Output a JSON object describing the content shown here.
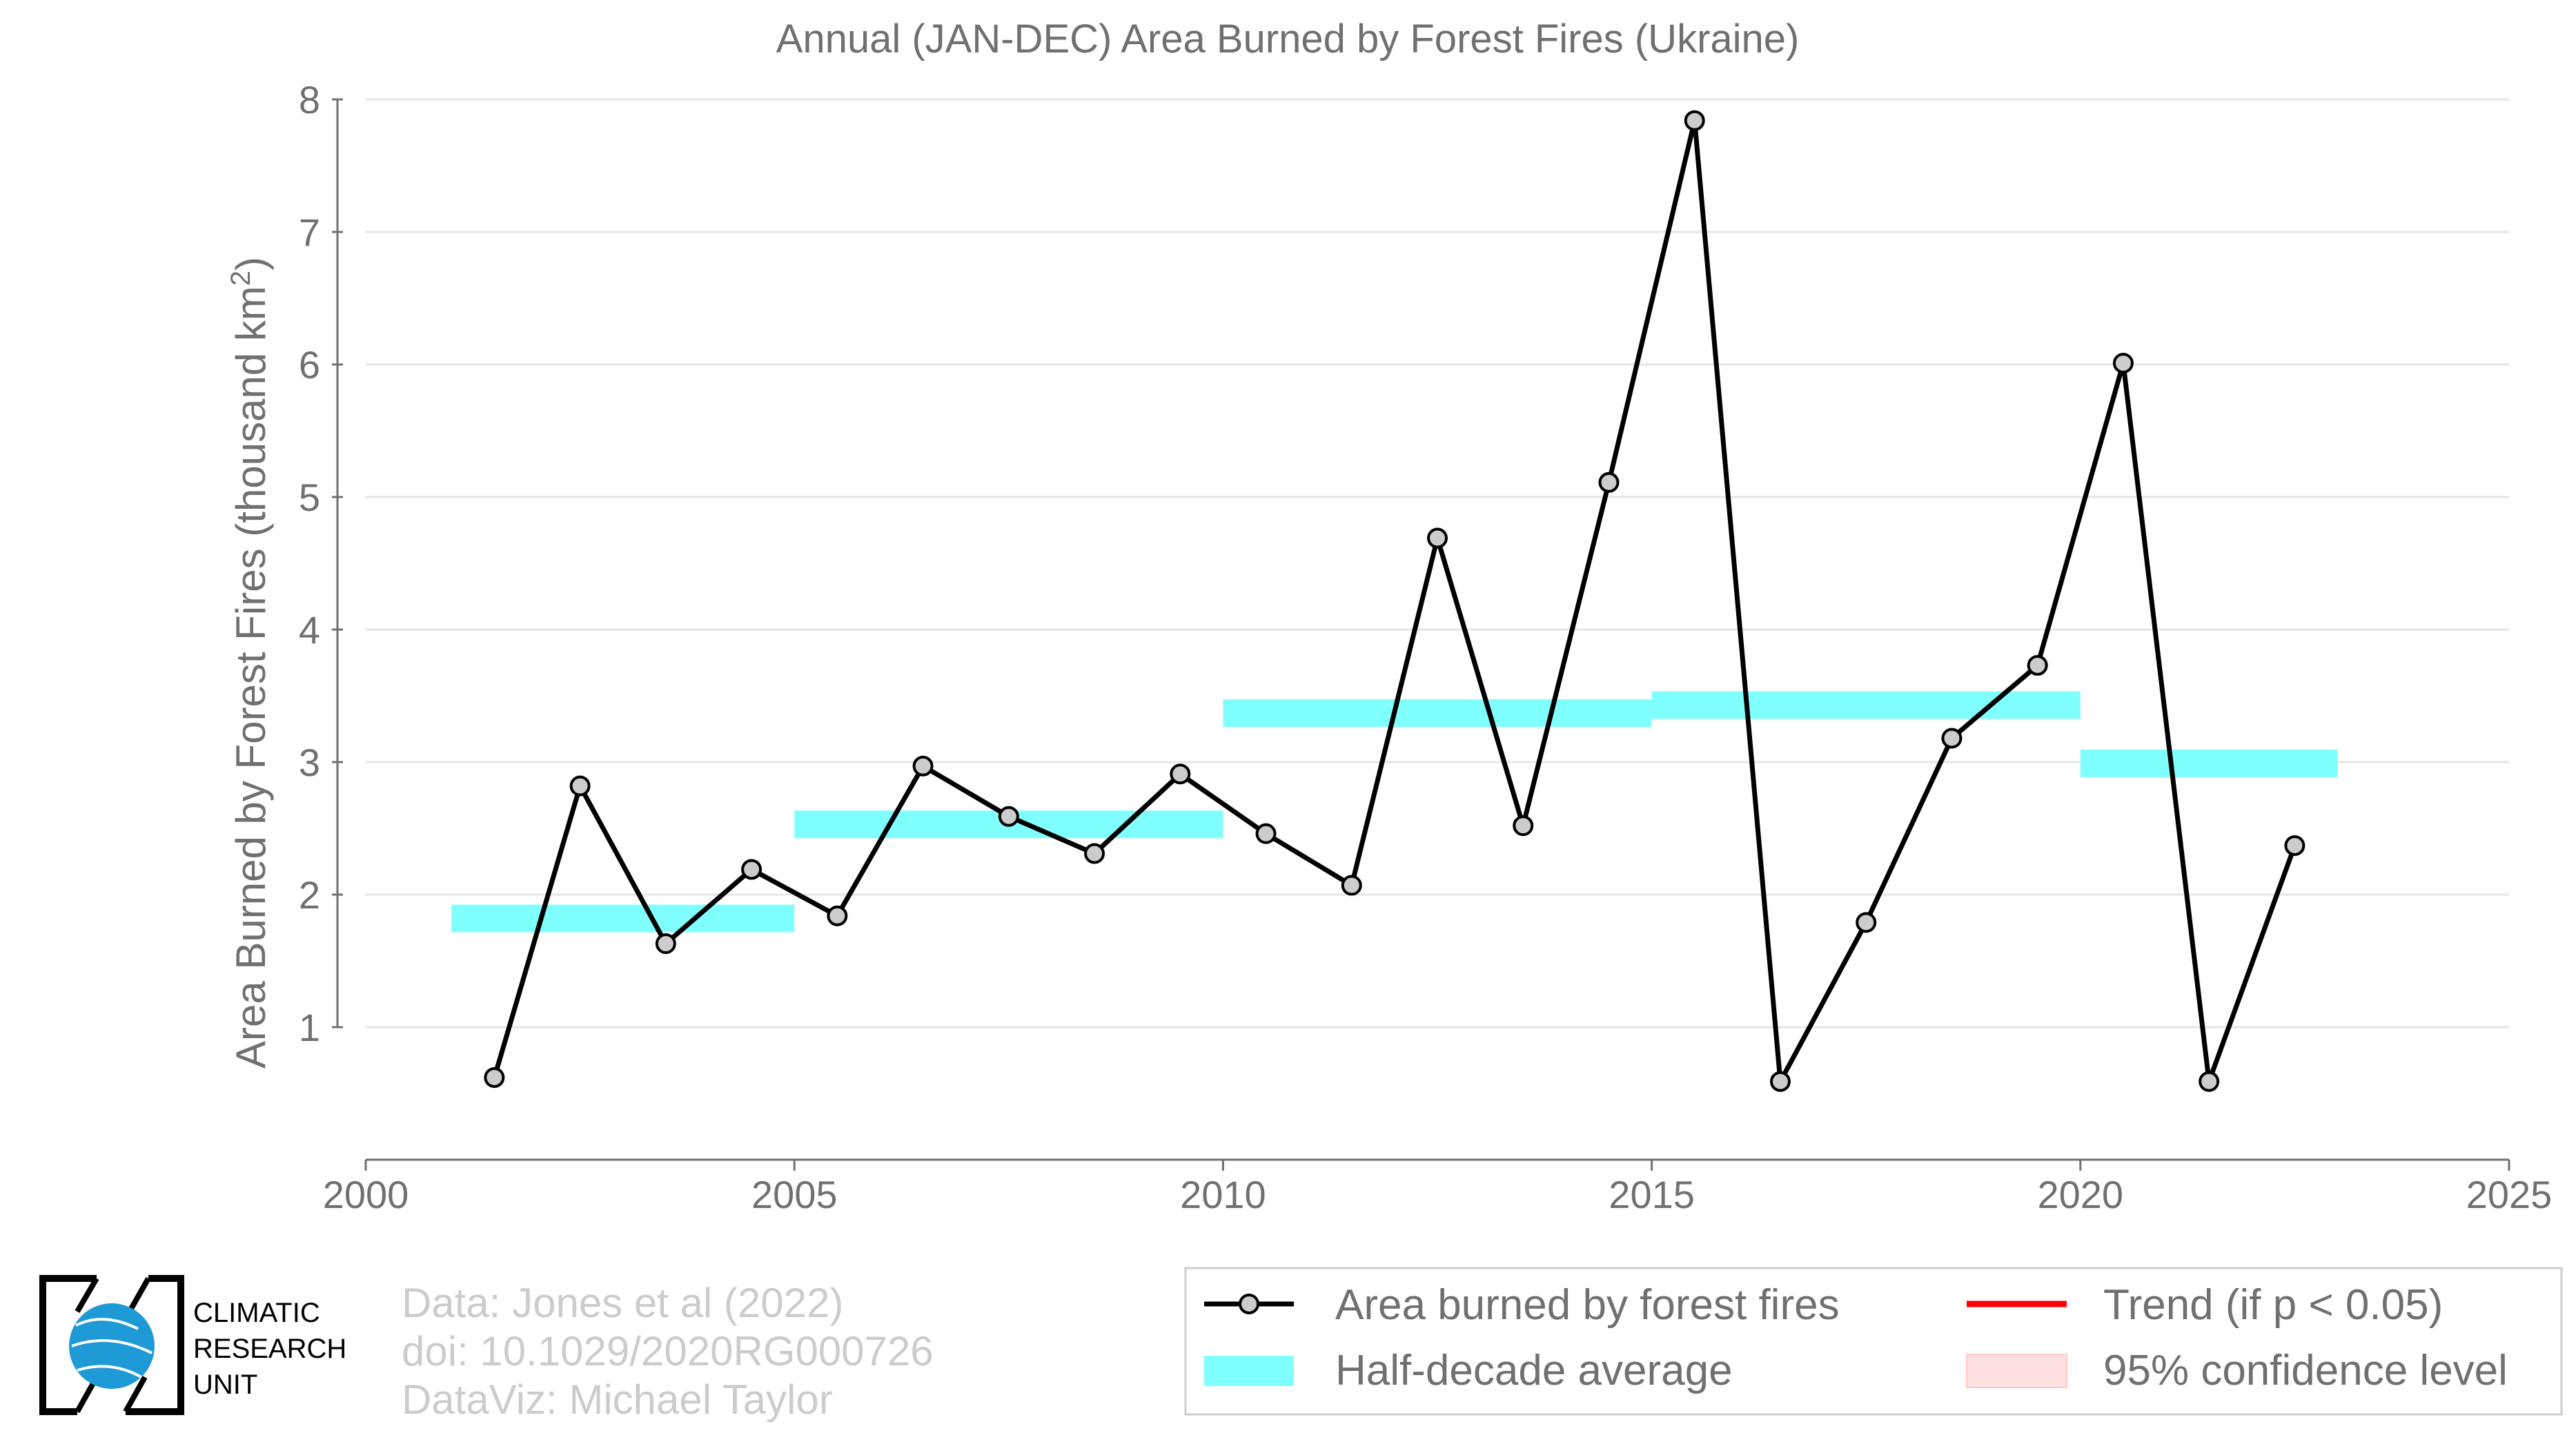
{
  "chart_data": {
    "type": "line",
    "title": "Annual (JAN-DEC) Area Burned by Forest Fires (Ukraine)",
    "ylabel_main": "Area Burned by Forest Fires (thousand km",
    "ylabel_sup": "2",
    "ylabel_close": ")",
    "xlim": [
      2000,
      2025
    ],
    "ylim": [
      0,
      8
    ],
    "xticks": [
      2000,
      2005,
      2010,
      2015,
      2020,
      2025
    ],
    "yticks": [
      1,
      2,
      3,
      4,
      5,
      6,
      7,
      8
    ],
    "grid": "horizontal",
    "series": [
      {
        "name": "Area burned by forest fires",
        "color": "#000000",
        "marker_color": "#cccccc",
        "x": [
          2001.5,
          2002.5,
          2003.5,
          2004.5,
          2005.5,
          2006.5,
          2007.5,
          2008.5,
          2009.5,
          2010.5,
          2011.5,
          2012.5,
          2013.5,
          2014.5,
          2015.5,
          2016.5,
          2017.5,
          2018.5,
          2019.5,
          2020.5,
          2021.5,
          2022.5
        ],
        "values": [
          0.62,
          2.82,
          1.63,
          2.19,
          1.84,
          2.97,
          2.59,
          2.31,
          2.91,
          2.46,
          2.07,
          4.69,
          2.52,
          5.11,
          7.84,
          0.59,
          1.79,
          3.18,
          3.73,
          6.01,
          0.59,
          2.37
        ]
      }
    ],
    "half_decade_average": {
      "name": "Half-decade average",
      "color": "#80ffff",
      "segments": [
        {
          "x0": 2001,
          "x1": 2005,
          "value": 1.82
        },
        {
          "x0": 2005,
          "x1": 2010,
          "value": 2.53
        },
        {
          "x0": 2010,
          "x1": 2015,
          "value": 3.37
        },
        {
          "x0": 2015,
          "x1": 2020,
          "value": 3.43
        },
        {
          "x0": 2020,
          "x1": 2023,
          "value": 2.99
        }
      ]
    },
    "trend": {
      "name": "Trend (if p < 0.05)",
      "color": "#ff0000"
    },
    "confidence": {
      "name": "95% confidence level",
      "color": "#ffe0e0"
    },
    "legend_placement": "bottom-right"
  },
  "credits": {
    "line1": "Data: Jones et al (2022)",
    "line2": "doi: 10.1029/2020RG000726",
    "line3": "DataViz: Michael Taylor"
  },
  "logo": {
    "line1": "CLIMATIC",
    "line2": "RESEARCH",
    "line3": "UNIT",
    "globe_color": "#1e9ad6"
  }
}
